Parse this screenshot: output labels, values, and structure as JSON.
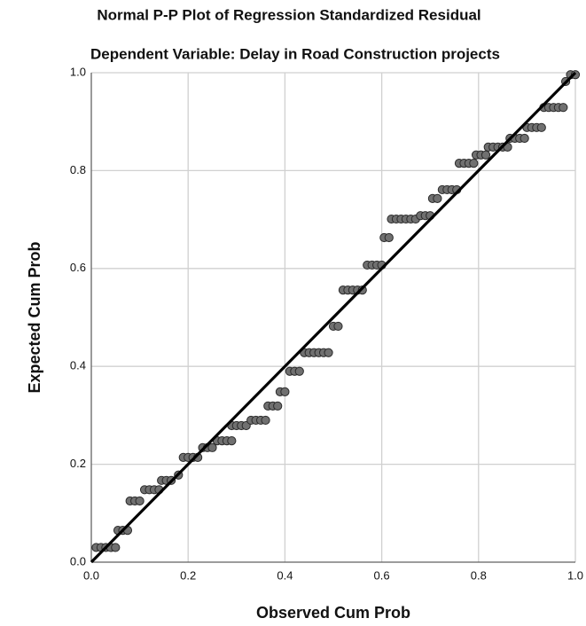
{
  "chart_data": {
    "type": "scatter",
    "title": "Normal P-P Plot of Regression Standardized Residual",
    "subtitle": "Dependent Variable: Delay in Road Construction projects",
    "x_label": "Observed Cum Prob",
    "y_label": "Expected Cum Prob",
    "xlim": [
      0,
      1
    ],
    "ylim": [
      0,
      1
    ],
    "xticks": [
      {
        "value": 0,
        "label": "0.0"
      },
      {
        "value": 0.2,
        "label": "0.2"
      },
      {
        "value": 0.4,
        "label": "0.4"
      },
      {
        "value": 0.6,
        "label": "0.6"
      },
      {
        "value": 0.8,
        "label": "0.8"
      },
      {
        "value": 1,
        "label": "1.0"
      }
    ],
    "yticks": [
      {
        "value": 0,
        "label": "0.0"
      },
      {
        "value": 0.2,
        "label": "0.2"
      },
      {
        "value": 0.4,
        "label": "0.4"
      },
      {
        "value": 0.6,
        "label": "0.6"
      },
      {
        "value": 0.8,
        "label": "0.8"
      },
      {
        "value": 1,
        "label": "1.0"
      }
    ],
    "grid": true,
    "color": "#707070",
    "x": [
      0.01,
      0.02,
      0.03,
      0.04,
      0.05,
      0.055,
      0.065,
      0.075,
      0.08,
      0.09,
      0.1,
      0.11,
      0.12,
      0.13,
      0.14,
      0.145,
      0.155,
      0.165,
      0.18,
      0.19,
      0.2,
      0.21,
      0.22,
      0.23,
      0.24,
      0.25,
      0.26,
      0.27,
      0.28,
      0.29,
      0.29,
      0.3,
      0.31,
      0.32,
      0.33,
      0.34,
      0.35,
      0.36,
      0.365,
      0.375,
      0.385,
      0.39,
      0.4,
      0.41,
      0.42,
      0.43,
      0.44,
      0.45,
      0.46,
      0.47,
      0.48,
      0.49,
      0.5,
      0.51,
      0.52,
      0.53,
      0.54,
      0.55,
      0.56,
      0.57,
      0.58,
      0.59,
      0.6,
      0.605,
      0.615,
      0.62,
      0.63,
      0.64,
      0.65,
      0.66,
      0.67,
      0.68,
      0.69,
      0.7,
      0.705,
      0.715,
      0.725,
      0.735,
      0.745,
      0.755,
      0.76,
      0.77,
      0.78,
      0.79,
      0.795,
      0.805,
      0.815,
      0.82,
      0.83,
      0.84,
      0.85,
      0.86,
      0.865,
      0.875,
      0.885,
      0.895,
      0.9,
      0.91,
      0.92,
      0.93,
      0.935,
      0.945,
      0.955,
      0.965,
      0.975,
      0.98,
      0.99,
      1.0
    ],
    "y": [
      0.03,
      0.03,
      0.03,
      0.03,
      0.03,
      0.065,
      0.065,
      0.065,
      0.125,
      0.125,
      0.125,
      0.148,
      0.148,
      0.148,
      0.148,
      0.167,
      0.167,
      0.167,
      0.178,
      0.214,
      0.214,
      0.214,
      0.214,
      0.234,
      0.234,
      0.234,
      0.248,
      0.248,
      0.248,
      0.248,
      0.279,
      0.279,
      0.279,
      0.279,
      0.29,
      0.29,
      0.29,
      0.29,
      0.319,
      0.319,
      0.319,
      0.348,
      0.348,
      0.39,
      0.39,
      0.39,
      0.428,
      0.428,
      0.428,
      0.428,
      0.428,
      0.428,
      0.482,
      0.482,
      0.556,
      0.556,
      0.556,
      0.556,
      0.556,
      0.607,
      0.607,
      0.607,
      0.607,
      0.663,
      0.663,
      0.701,
      0.701,
      0.701,
      0.701,
      0.701,
      0.701,
      0.708,
      0.708,
      0.708,
      0.743,
      0.743,
      0.761,
      0.761,
      0.761,
      0.761,
      0.815,
      0.815,
      0.815,
      0.815,
      0.832,
      0.832,
      0.832,
      0.848,
      0.848,
      0.848,
      0.848,
      0.848,
      0.866,
      0.866,
      0.866,
      0.866,
      0.888,
      0.888,
      0.888,
      0.888,
      0.929,
      0.929,
      0.929,
      0.929,
      0.929,
      0.982,
      0.996,
      0.996
    ]
  }
}
